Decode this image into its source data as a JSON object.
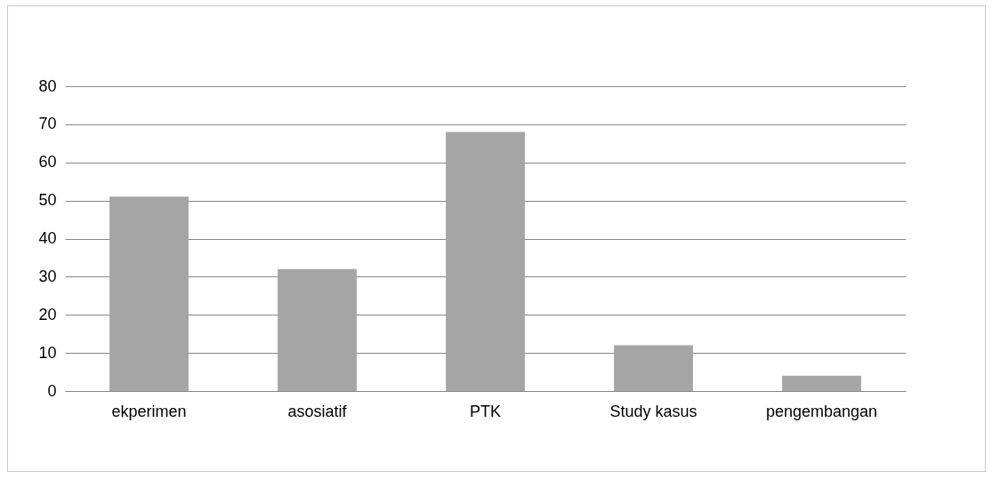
{
  "chart_data": {
    "type": "bar",
    "categories": [
      "ekperimen",
      "asosiatif",
      "PTK",
      "Study kasus",
      "pengembangan"
    ],
    "values": [
      51,
      32,
      68,
      12,
      4
    ],
    "color": "#a5a5a5",
    "ylim": [
      0,
      80
    ],
    "yticks": [
      0,
      10,
      20,
      30,
      40,
      50,
      60,
      70,
      80
    ],
    "grid": "y"
  }
}
